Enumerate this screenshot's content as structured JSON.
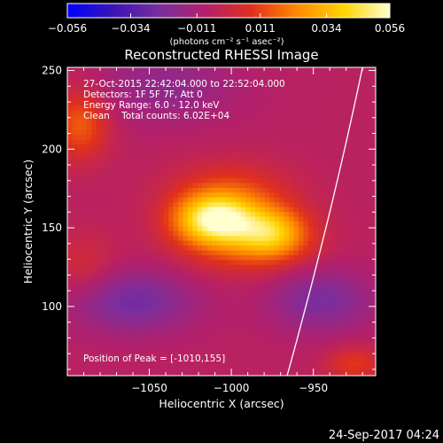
{
  "chart_data": {
    "type": "heatmap",
    "title": "Reconstructed RHESSI Image",
    "xlabel": "Heliocentric X (arcsec)",
    "ylabel": "Heliocentric Y (arcsec)",
    "xlim": [
      -1100,
      -912
    ],
    "ylim": [
      56,
      252
    ],
    "x_ticks": [
      -1050,
      -1000,
      -950
    ],
    "x_tick_labels": [
      "−1050",
      "−1000",
      "−950"
    ],
    "y_ticks": [
      100,
      150,
      200,
      250
    ],
    "y_tick_labels": [
      "100",
      "150",
      "200",
      "250"
    ],
    "colorbar": {
      "min": -0.056,
      "max": 0.056,
      "ticks": [
        -0.056,
        -0.034,
        -0.011,
        0.011,
        0.034,
        0.056
      ],
      "tick_labels": [
        "−0.056",
        "−0.034",
        "−0.011",
        "0.011",
        "0.034",
        "0.056"
      ],
      "unit_label": "(photons cm⁻² s⁻¹ asec⁻²)",
      "colors": [
        "#0000ff",
        "#3c14b4",
        "#7a2e9e",
        "#b3206b",
        "#e0301c",
        "#ff8a00",
        "#ffd400",
        "#ffffd0"
      ]
    },
    "annotations": {
      "time_range": "27-Oct-2015 22:42:04.000 to 22:52:04.000",
      "detectors": "Detectors: 1F 5F 7F, Att 0",
      "energy_range": "Energy Range: 6.0 - 12.0 keV",
      "clean": "Clean    Total counts: 6.02E+04",
      "peak": "Position of Peak = [-1010,155]"
    },
    "peak_position": [
      -1010,
      155
    ],
    "sources": [
      {
        "x": -1010,
        "y": 155,
        "sigma_x": 17,
        "sigma_y": 11,
        "peak": 0.052
      },
      {
        "x": -975,
        "y": 147,
        "sigma_x": 15,
        "sigma_y": 11,
        "peak": 0.034
      },
      {
        "x": -1000,
        "y": 170,
        "sigma_x": 26,
        "sigma_y": 15,
        "peak": 0.018
      },
      {
        "x": -992,
        "y": 138,
        "sigma_x": 28,
        "sigma_y": 13,
        "peak": 0.016
      },
      {
        "x": -1092,
        "y": 216,
        "sigma_x": 12,
        "sigma_y": 16,
        "peak": 0.022
      },
      {
        "x": -1090,
        "y": 126,
        "sigma_x": 14,
        "sigma_y": 15,
        "peak": 0.009
      },
      {
        "x": -925,
        "y": 63,
        "sigma_x": 12,
        "sigma_y": 8,
        "peak": 0.015
      },
      {
        "x": -1060,
        "y": 103,
        "sigma_x": 26,
        "sigma_y": 14,
        "peak": -0.02
      },
      {
        "x": -945,
        "y": 104,
        "sigma_x": 22,
        "sigma_y": 14,
        "peak": -0.018
      },
      {
        "x": -1040,
        "y": 240,
        "sigma_x": 30,
        "sigma_y": 16,
        "peak": -0.012
      }
    ],
    "background_level": -0.006,
    "limb_curve": {
      "x": [
        -966,
        -920
      ],
      "y": [
        56,
        252
      ]
    }
  },
  "footer_date": "24-Sep-2017 04:24"
}
